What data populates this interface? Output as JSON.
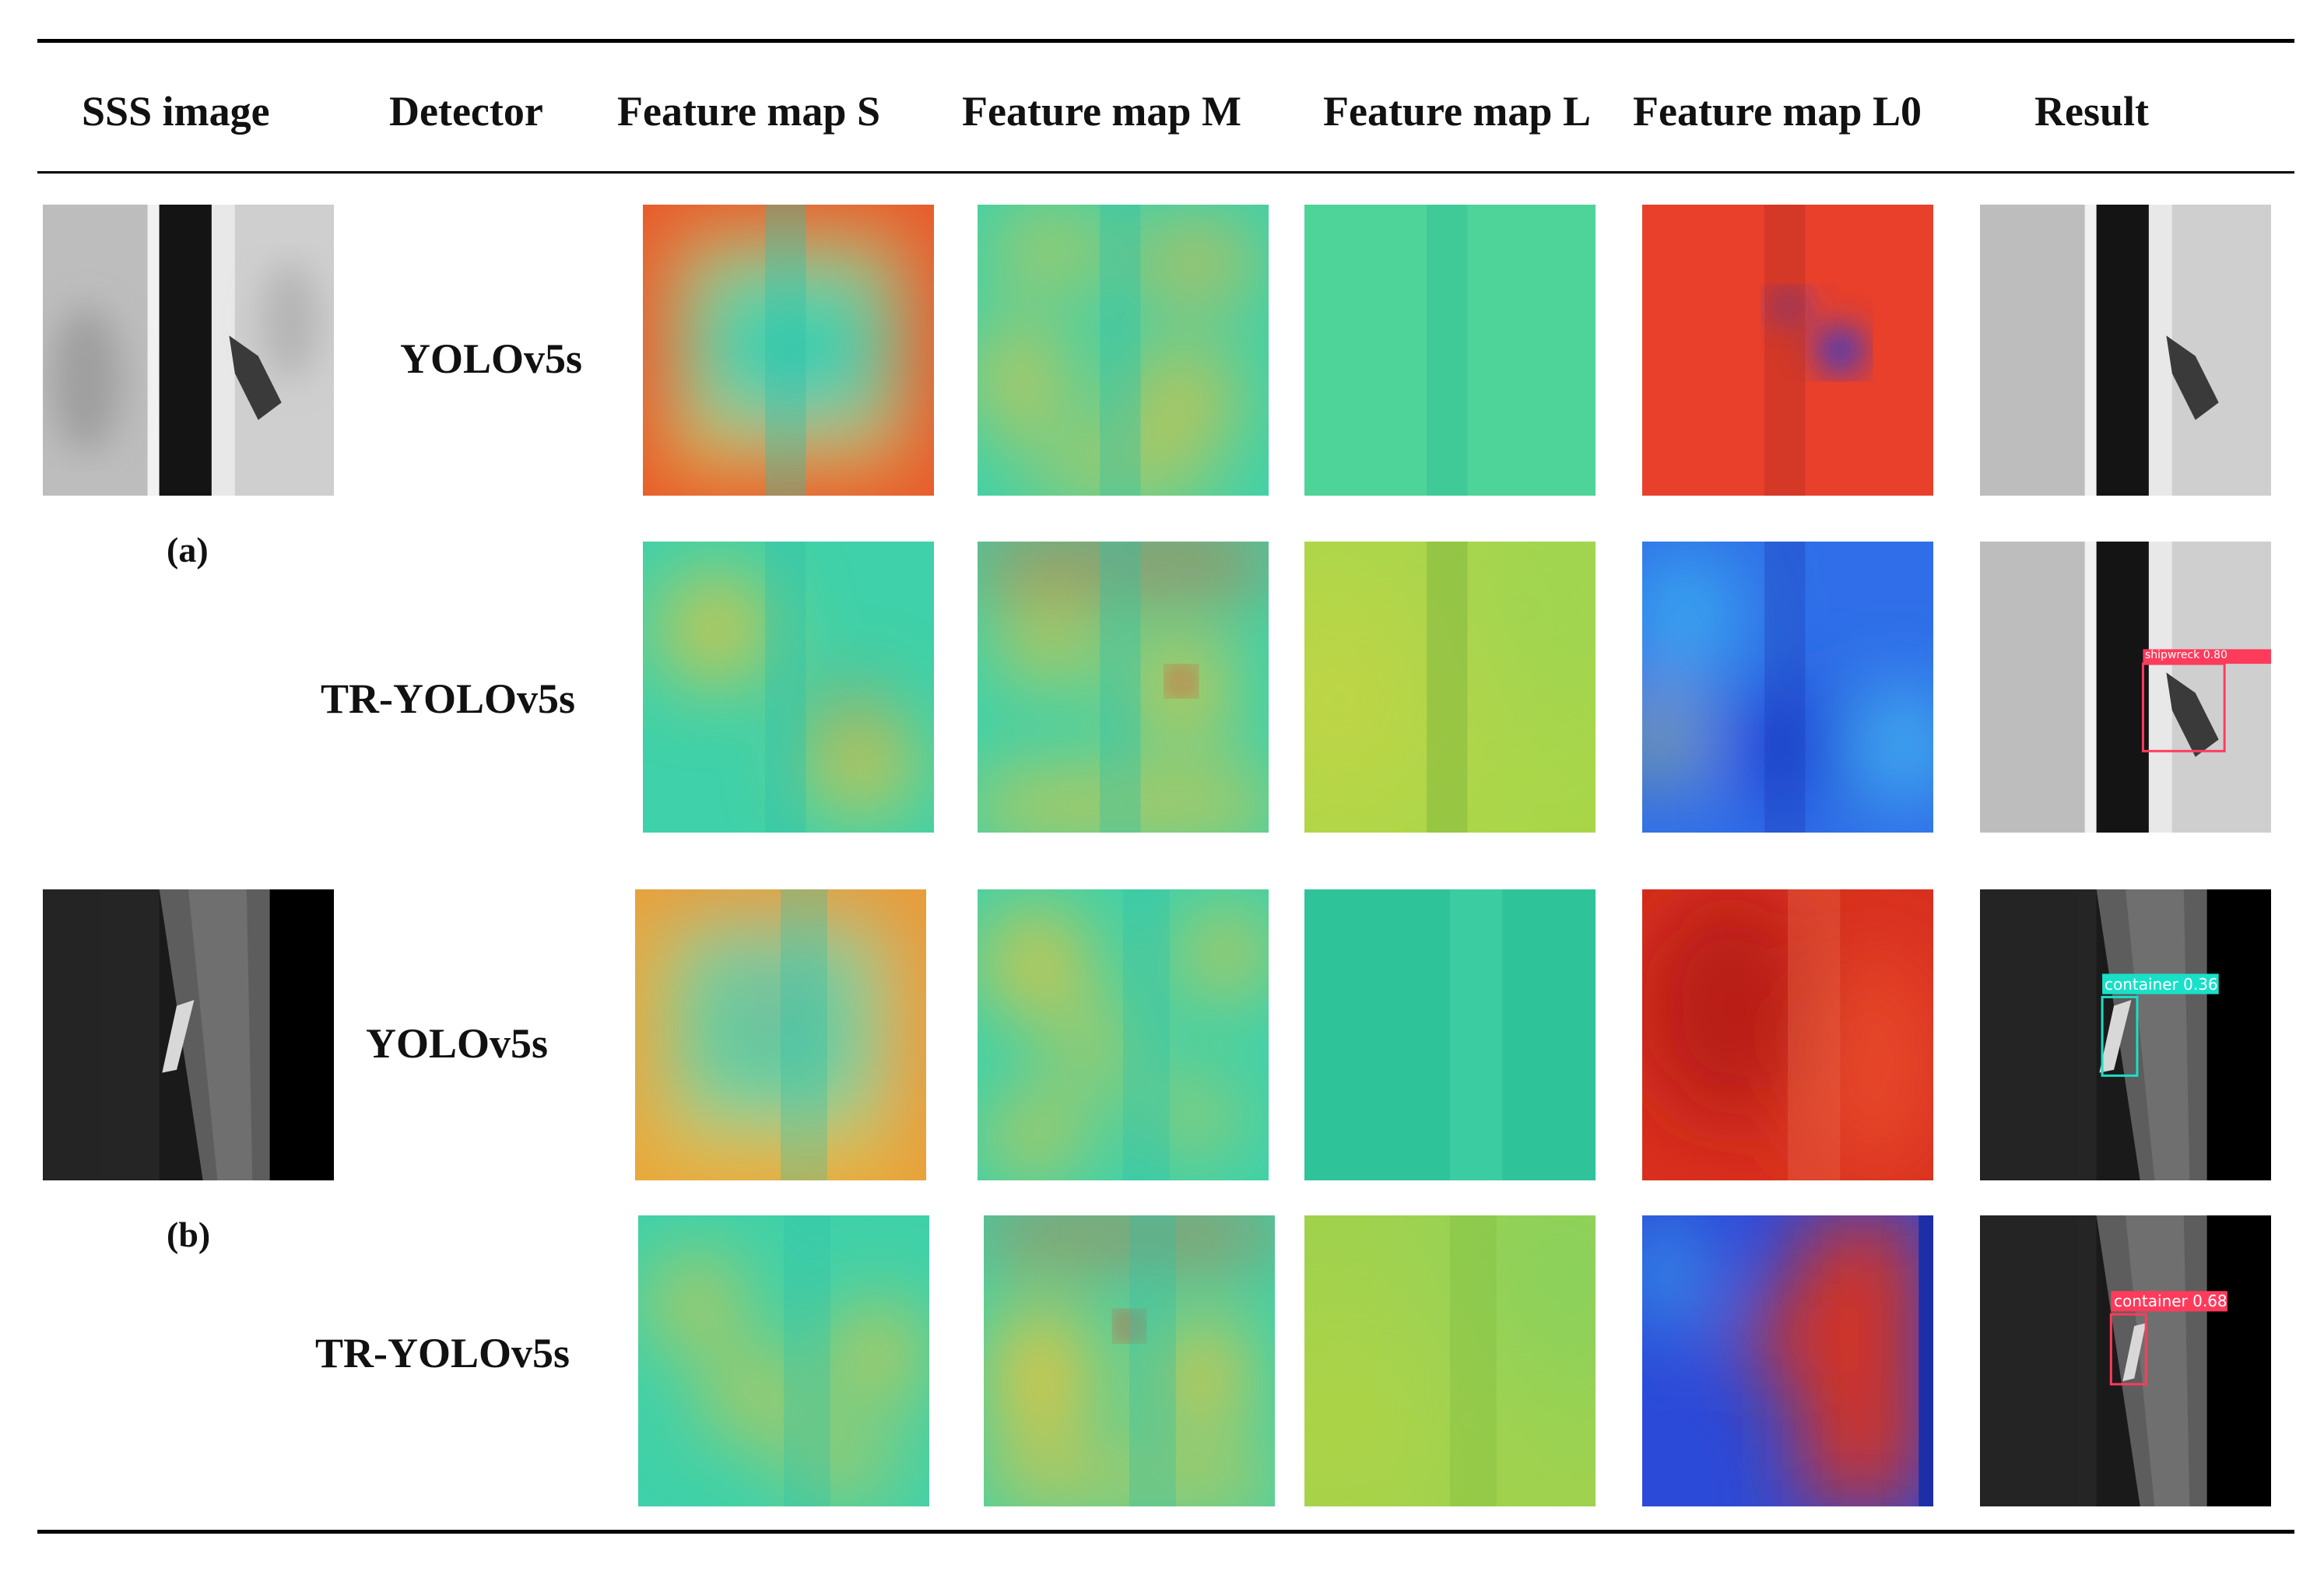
{
  "headers": {
    "sss_image": "SSS image",
    "detector": "Detector",
    "fmap_s": "Feature map S",
    "fmap_m": "Feature map M",
    "fmap_l": "Feature map L",
    "fmap_l0": "Feature map L0",
    "result": "Result"
  },
  "rows": [
    {
      "detector": "YOLOv5s"
    },
    {
      "detector": "TR-YOLOv5s"
    },
    {
      "detector": "YOLOv5s"
    },
    {
      "detector": "TR-YOLOv5s"
    }
  ],
  "labels": {
    "a": "(a)",
    "b": "(b)"
  },
  "detections": {
    "row2": "shipwreck 0.80",
    "row3": "container 0.36",
    "row4": "container 0.68"
  },
  "colors": {
    "box_red": "#ff3b5c",
    "box_cyan": "#19e0c8"
  }
}
